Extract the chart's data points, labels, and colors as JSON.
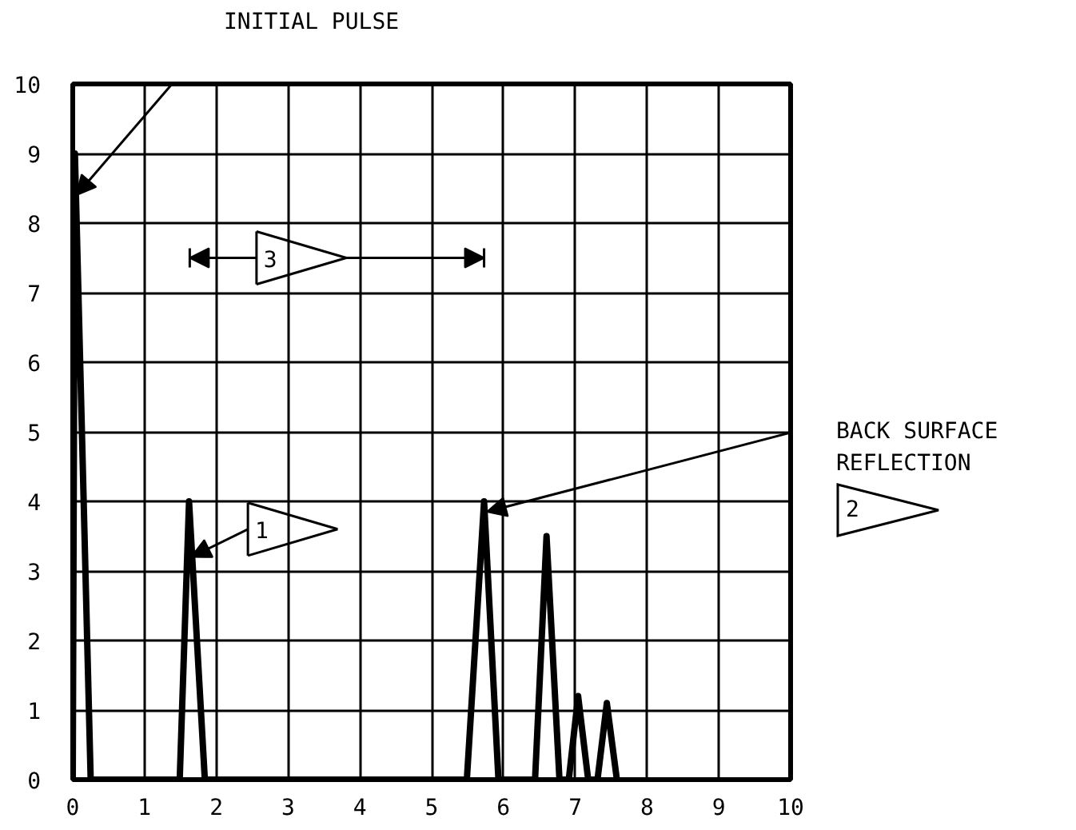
{
  "chart_data": {
    "type": "line",
    "x": [
      0,
      0.03,
      0.25,
      1.49,
      1.62,
      1.84,
      5.49,
      5.73,
      5.93,
      6.44,
      6.6,
      6.78,
      6.91,
      7.04,
      7.18,
      7.31,
      7.44,
      7.58
    ],
    "series": [
      {
        "color": "#000000",
        "values": [
          0,
          9,
          0,
          0,
          4,
          0,
          0,
          4,
          0,
          0,
          3.5,
          0,
          0,
          1.2,
          0,
          0,
          1.1,
          0
        ]
      }
    ],
    "xlim": [
      0,
      10
    ],
    "ylim": [
      0,
      10
    ],
    "xticks": [
      0,
      1,
      2,
      3,
      4,
      5,
      6,
      7,
      8,
      9,
      10
    ],
    "yticks": [
      0,
      1,
      2,
      3,
      4,
      5,
      6,
      7,
      8,
      9,
      10
    ],
    "grid": true,
    "marker": "none",
    "line_style": "solid",
    "annotations": [
      {
        "text": "INITIAL PULSE",
        "x": 0.05,
        "y": 8.4
      },
      {
        "text": "1",
        "x": 1.65,
        "y": 3.2
      },
      {
        "text": "BACK SURFACE\nREFLECTION",
        "x": 5.77,
        "y": 3.85
      },
      "2",
      "3"
    ]
  }
}
